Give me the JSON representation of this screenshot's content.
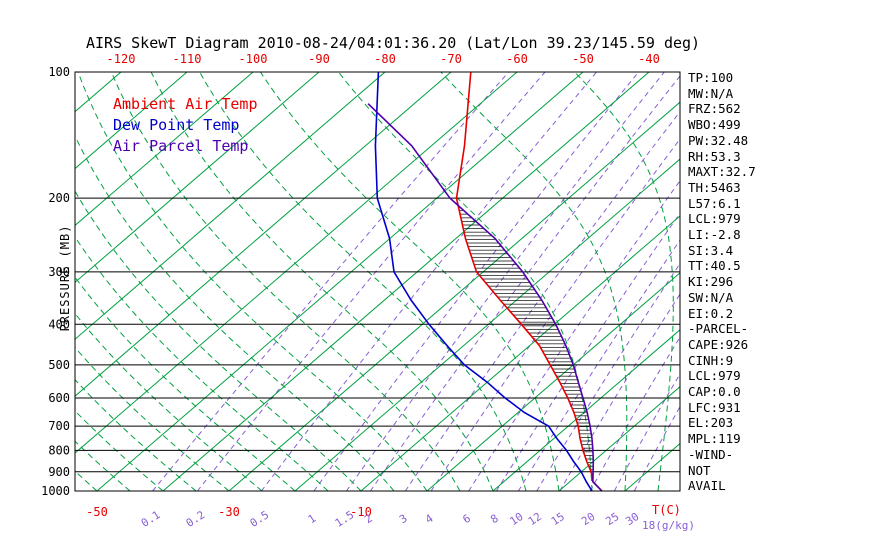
{
  "title": "AIRS SkewT Diagram 2010-08-24/04:01:36.20 (Lat/Lon 39.23/145.59 deg)",
  "y_axis_label": "PRESSURE (MB)",
  "bottom_right_units": {
    "temp": "T(C)",
    "mixing": "18(g/kg)"
  },
  "colors": {
    "ambient": "#e60000",
    "dewpoint": "#0000cc",
    "parcel": "#4e00b0",
    "isotherm": "#00a040",
    "moist_adiabat": "#00a040",
    "mixing_ratio": "#8a5ed6",
    "axis": "#000000",
    "background": "#ffffff"
  },
  "legend": [
    {
      "id": "ambient",
      "label": "Ambient Air Temp"
    },
    {
      "id": "dewpoint",
      "label": "Dew Point Temp"
    },
    {
      "id": "parcel",
      "label": "Air Parcel Temp"
    }
  ],
  "side_panel": [
    "TP:100",
    "MW:N/A",
    "FRZ:562",
    "WBO:499",
    "PW:32.48",
    "RH:53.3",
    "MAXT:32.7",
    "TH:5463",
    "L57:6.1",
    "LCL:979",
    "LI:-2.8",
    "SI:3.4",
    "TT:40.5",
    "KI:296",
    "SW:N/A",
    "EI:0.2",
    "-PARCEL-",
    "CAPE:926",
    "CINH:9",
    "LCL:979",
    "CAP:0.0",
    "LFC:931",
    "EL:203",
    "MPL:119",
    "-WIND-",
    "NOT",
    "AVAIL"
  ],
  "chart_data": {
    "type": "skewt",
    "pressure_ticks": [
      100,
      200,
      300,
      400,
      500,
      600,
      700,
      800,
      900,
      1000
    ],
    "pressure_range": [
      100,
      1000
    ],
    "log_pressure_axis": true,
    "top_temp_ticks": [
      -120,
      -110,
      -100,
      -90,
      -80,
      -70,
      -60,
      -50,
      -40
    ],
    "bottom_temp_ticks": [
      -50,
      -30,
      -10
    ],
    "isotherm_range": {
      "min": -120,
      "max": 40,
      "step": 10
    },
    "mixing_ratio_lines": [
      0.1,
      0.2,
      0.5,
      1,
      1.5,
      2,
      3,
      4,
      6,
      8,
      10,
      12,
      15,
      20,
      25,
      30
    ],
    "moist_adiabat_start_temps": [
      -50,
      -45,
      -40,
      -35,
      -30,
      -25,
      -20,
      -15,
      -10,
      -5,
      0,
      5,
      10,
      15,
      20,
      25,
      30,
      35,
      40
    ],
    "sounding": {
      "pressure": [
        1000,
        950,
        900,
        850,
        800,
        750,
        700,
        650,
        600,
        550,
        500,
        450,
        400,
        350,
        300,
        250,
        200,
        150,
        100
      ],
      "ambient_temp": [
        26.5,
        23.5,
        21.5,
        19,
        16.5,
        14,
        11.5,
        8.5,
        5,
        1,
        -3.5,
        -8.5,
        -15,
        -22.5,
        -31,
        -38.5,
        -47,
        -55,
        -67
      ],
      "dew_point": [
        25,
        22.5,
        20,
        17,
        14,
        10.5,
        7,
        1,
        -4.5,
        -10,
        -16.5,
        -22.5,
        -29,
        -36,
        -43.5,
        -50,
        -59,
        -68.5,
        -81
      ],
      "parcel_pressure": [
        1000,
        950,
        900,
        850,
        800,
        750,
        700,
        650,
        600,
        550,
        500,
        450,
        400,
        350,
        300,
        250,
        200,
        150,
        119
      ],
      "parcel_temp": [
        26.5,
        23.5,
        21.8,
        20,
        18,
        15.8,
        13.3,
        10.5,
        7.3,
        3.8,
        0,
        -4.5,
        -9.8,
        -16.2,
        -24,
        -34,
        -48,
        -63,
        -77
      ]
    },
    "cape_region": {
      "lfc_pressure": 931,
      "el_pressure": 203
    }
  }
}
